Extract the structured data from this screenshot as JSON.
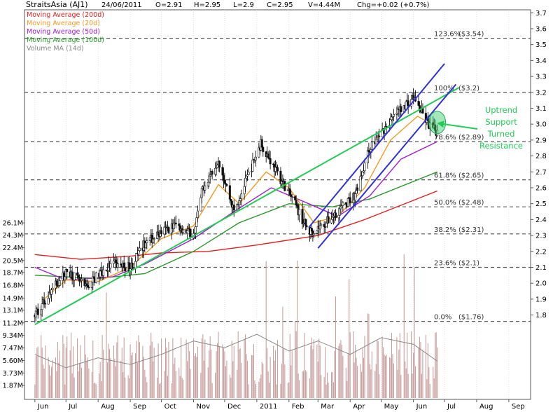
{
  "header": {
    "symbol": "StraitsAsia (AJ1)",
    "date": "24/06/2011",
    "open": "O=2.91",
    "high": "H=2.95",
    "low": "L=2.9",
    "close": "C=2.95",
    "volume": "V=4.44M",
    "change": "Chg=+0.02 (+0.7%)"
  },
  "legend": [
    {
      "label": "Moving Average (200d)",
      "color": "#e02020"
    },
    {
      "label": "Moving Average (20d)",
      "color": "#f29a22"
    },
    {
      "label": "Moving Average (50d)",
      "color": "#a020d0"
    },
    {
      "label": "Moving Average (100d)",
      "color": "#2a9a2a"
    },
    {
      "label": "Volume MA (14d)",
      "color": "#888888"
    }
  ],
  "annotation": {
    "lines": [
      "Uptrend",
      "Support",
      "Turned",
      "Resistance"
    ],
    "color": "#22cc55"
  },
  "chart_data": {
    "type": "candlestick",
    "x_tick_labels": [
      "Jun",
      "Jul",
      "Aug",
      "Sep",
      "Oct",
      "Nov",
      "Dec",
      "2011",
      "Feb",
      "Mar",
      "Apr",
      "May",
      "Jun",
      "Jul",
      "Aug",
      "Sep"
    ],
    "price_axis": {
      "ticks": [
        "3.7",
        "3.6",
        "3.5",
        "3.4",
        "3.3",
        "3.2",
        "3.1",
        "3.0",
        "2.9",
        "2.8",
        "2.7",
        "2.6",
        "2.5",
        "2.4",
        "2.3",
        "2.2",
        "2.1",
        "2.0",
        "1.9",
        "1.8"
      ],
      "range": [
        1.71,
        3.71
      ]
    },
    "volume_axis": {
      "ticks": [
        "26.1M",
        "24.3M",
        "22.4M",
        "20.5M",
        "18.7M",
        "16.8M",
        "14.9M",
        "13.1M",
        "11.2M",
        "9.34M",
        "7.47M",
        "5.60M",
        "3.73M",
        "1.87M"
      ],
      "range": [
        0,
        28
      ]
    },
    "fibonacci_levels": [
      {
        "label": "123.6%",
        "price_label": "($3.54)",
        "value": 3.54
      },
      {
        "label": "100%",
        "price_label": "($3.2)",
        "value": 3.2
      },
      {
        "label": "78.6%",
        "price_label": "($2.89)",
        "value": 2.89
      },
      {
        "label": "61.8%",
        "price_label": "($2.65)",
        "value": 2.65
      },
      {
        "label": "50.0%",
        "price_label": "($2.48)",
        "value": 2.48
      },
      {
        "label": "38.2%",
        "price_label": "($2.31)",
        "value": 2.31
      },
      {
        "label": "23.6%",
        "price_label": "($2.1)",
        "value": 2.1
      },
      {
        "label": "0.0%",
        "price_label": "($1.76)",
        "value": 1.76
      }
    ],
    "price_anchors": [
      {
        "date": "2010-06-01",
        "price": 1.8
      },
      {
        "date": "2010-06-20",
        "price": 1.98
      },
      {
        "date": "2010-07-03",
        "price": 2.08
      },
      {
        "date": "2010-07-20",
        "price": 1.97
      },
      {
        "date": "2010-08-01",
        "price": 2.05
      },
      {
        "date": "2010-08-15",
        "price": 2.12
      },
      {
        "date": "2010-09-01",
        "price": 2.1
      },
      {
        "date": "2010-09-15",
        "price": 2.25
      },
      {
        "date": "2010-10-01",
        "price": 2.32
      },
      {
        "date": "2010-10-15",
        "price": 2.37
      },
      {
        "date": "2010-11-01",
        "price": 2.3
      },
      {
        "date": "2010-11-10",
        "price": 2.6
      },
      {
        "date": "2010-11-25",
        "price": 2.78
      },
      {
        "date": "2010-12-10",
        "price": 2.45
      },
      {
        "date": "2010-12-25",
        "price": 2.7
      },
      {
        "date": "2011-01-05",
        "price": 2.88
      },
      {
        "date": "2011-01-20",
        "price": 2.7
      },
      {
        "date": "2011-02-05",
        "price": 2.52
      },
      {
        "date": "2011-02-20",
        "price": 2.32
      },
      {
        "date": "2011-03-05",
        "price": 2.36
      },
      {
        "date": "2011-03-20",
        "price": 2.45
      },
      {
        "date": "2011-04-05",
        "price": 2.55
      },
      {
        "date": "2011-04-20",
        "price": 2.85
      },
      {
        "date": "2011-05-05",
        "price": 2.98
      },
      {
        "date": "2011-05-20",
        "price": 3.1
      },
      {
        "date": "2011-06-01",
        "price": 3.17
      },
      {
        "date": "2011-06-15",
        "price": 3.0
      },
      {
        "date": "2011-06-24",
        "price": 2.95
      }
    ],
    "moving_averages": [
      {
        "name": "Moving Average (200d)",
        "points": [
          {
            "date": "2010-06-01",
            "value": 2.18
          },
          {
            "date": "2010-07-15",
            "value": 2.15
          },
          {
            "date": "2010-09-01",
            "value": 2.17
          },
          {
            "date": "2010-10-01",
            "value": 2.19
          },
          {
            "date": "2010-11-15",
            "value": 2.2
          },
          {
            "date": "2011-01-01",
            "value": 2.24
          },
          {
            "date": "2011-03-01",
            "value": 2.3
          },
          {
            "date": "2011-04-15",
            "value": 2.4
          },
          {
            "date": "2011-06-24",
            "value": 2.58
          }
        ]
      },
      {
        "name": "Moving Average (100d)",
        "points": [
          {
            "date": "2010-06-01",
            "value": 2.05
          },
          {
            "date": "2010-08-01",
            "value": 2.03
          },
          {
            "date": "2010-09-15",
            "value": 2.06
          },
          {
            "date": "2010-11-01",
            "value": 2.2
          },
          {
            "date": "2010-12-15",
            "value": 2.38
          },
          {
            "date": "2011-02-01",
            "value": 2.5
          },
          {
            "date": "2011-03-15",
            "value": 2.48
          },
          {
            "date": "2011-04-20",
            "value": 2.53
          },
          {
            "date": "2011-06-24",
            "value": 2.7
          }
        ]
      },
      {
        "name": "Moving Average (50d)",
        "points": [
          {
            "date": "2010-06-01",
            "value": 2.1
          },
          {
            "date": "2010-07-01",
            "value": 2.02
          },
          {
            "date": "2010-08-15",
            "value": 2.04
          },
          {
            "date": "2010-09-15",
            "value": 2.12
          },
          {
            "date": "2010-11-01",
            "value": 2.28
          },
          {
            "date": "2010-12-10",
            "value": 2.45
          },
          {
            "date": "2011-01-15",
            "value": 2.6
          },
          {
            "date": "2011-02-20",
            "value": 2.5
          },
          {
            "date": "2011-03-20",
            "value": 2.42
          },
          {
            "date": "2011-04-20",
            "value": 2.55
          },
          {
            "date": "2011-05-20",
            "value": 2.78
          },
          {
            "date": "2011-06-24",
            "value": 2.89
          }
        ]
      },
      {
        "name": "Moving Average (20d)",
        "points": [
          {
            "date": "2010-06-10",
            "value": 1.9
          },
          {
            "date": "2010-07-01",
            "value": 2.02
          },
          {
            "date": "2010-08-01",
            "value": 2.01
          },
          {
            "date": "2010-09-01",
            "value": 2.1
          },
          {
            "date": "2010-10-01",
            "value": 2.28
          },
          {
            "date": "2010-11-01",
            "value": 2.36
          },
          {
            "date": "2010-11-25",
            "value": 2.62
          },
          {
            "date": "2010-12-15",
            "value": 2.5
          },
          {
            "date": "2011-01-10",
            "value": 2.7
          },
          {
            "date": "2011-02-01",
            "value": 2.6
          },
          {
            "date": "2011-02-25",
            "value": 2.38
          },
          {
            "date": "2011-03-20",
            "value": 2.42
          },
          {
            "date": "2011-04-15",
            "value": 2.6
          },
          {
            "date": "2011-05-10",
            "value": 2.9
          },
          {
            "date": "2011-06-05",
            "value": 3.05
          },
          {
            "date": "2011-06-24",
            "value": 2.98
          }
        ]
      },
      {
        "name": "Volume MA (14d)",
        "axis": "volume",
        "points": [
          {
            "date": "2010-06-01",
            "value": 6.5
          },
          {
            "date": "2010-07-01",
            "value": 4.5
          },
          {
            "date": "2010-08-01",
            "value": 6.0
          },
          {
            "date": "2010-09-01",
            "value": 5.0
          },
          {
            "date": "2010-10-01",
            "value": 6.5
          },
          {
            "date": "2010-11-01",
            "value": 8.5
          },
          {
            "date": "2010-12-01",
            "value": 7.5
          },
          {
            "date": "2011-01-01",
            "value": 9.5
          },
          {
            "date": "2011-02-01",
            "value": 7.0
          },
          {
            "date": "2011-03-01",
            "value": 8.5
          },
          {
            "date": "2011-04-01",
            "value": 6.5
          },
          {
            "date": "2011-05-01",
            "value": 9.0
          },
          {
            "date": "2011-06-01",
            "value": 8.0
          },
          {
            "date": "2011-06-24",
            "value": 5.5
          }
        ]
      }
    ],
    "trendlines": [
      {
        "color": "#22cc55",
        "from": {
          "date": "2010-06-01",
          "value": 1.74
        },
        "to": {
          "date": "2011-07-15",
          "value": 3.23
        }
      },
      {
        "color": "#3030dd",
        "from": {
          "date": "2011-02-20",
          "value": 2.35
        },
        "to": {
          "date": "2011-07-01",
          "value": 3.38
        }
      },
      {
        "color": "#3030dd",
        "from": {
          "date": "2011-03-01",
          "value": 2.22
        },
        "to": {
          "date": "2011-07-12",
          "value": 3.25
        }
      }
    ],
    "highlight": {
      "date": "2011-06-24",
      "value": 3.01
    },
    "x_range": [
      "2010-05-22",
      "2011-09-22"
    ]
  }
}
